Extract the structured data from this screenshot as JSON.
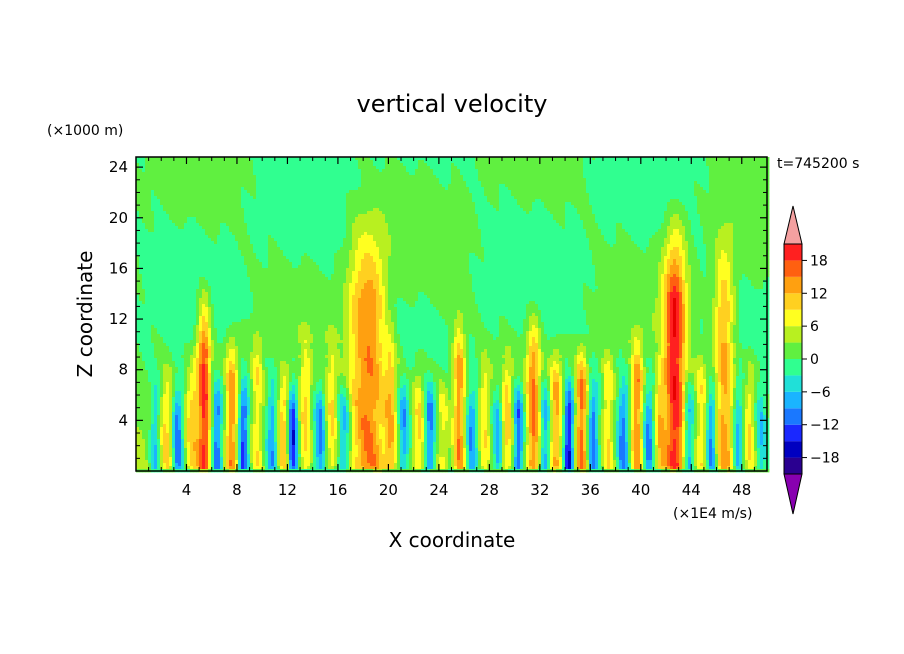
{
  "chart_data": {
    "type": "heatmap",
    "title": "vertical velocity",
    "xlabel": "X coordinate",
    "ylabel": "Z coordinate",
    "y_unit_label": "(×1000 m)",
    "colorbar_unit_label": "(×1E4 m/s)",
    "time_label": "t=745200 s",
    "xlim": [
      0,
      50
    ],
    "ylim": [
      0,
      24.8
    ],
    "x_ticks": [
      4,
      8,
      12,
      16,
      20,
      24,
      28,
      32,
      36,
      40,
      44,
      48
    ],
    "y_ticks": [
      4,
      8,
      12,
      16,
      20,
      24
    ],
    "colorbar": {
      "levels": [
        -21,
        -18,
        -15,
        -12,
        -9,
        -6,
        -3,
        0,
        3,
        6,
        9,
        12,
        15,
        18,
        21
      ],
      "colors": [
        "#5a00a0",
        "#2a0090",
        "#0000c0",
        "#1a28ff",
        "#1a78ff",
        "#1ab4ff",
        "#20e0d8",
        "#30ff90",
        "#60f040",
        "#b8f020",
        "#ffff20",
        "#ffd020",
        "#ffa010",
        "#ff6010",
        "#ff2020",
        "#e80000"
      ],
      "under_color": "#8800b0",
      "over_color": "#f4a0a0",
      "tick_labels": [
        "18",
        "12",
        "6",
        "0",
        "−6",
        "−12",
        "−18"
      ]
    },
    "background_value": 0,
    "plumes": [
      {
        "x": 0.4,
        "width": 0.8,
        "amp": 4,
        "top": 7
      },
      {
        "x": 1.5,
        "width": 0.35,
        "amp": -7,
        "top": 8
      },
      {
        "x": 2.4,
        "width": 0.5,
        "amp": 9,
        "top": 9
      },
      {
        "x": 3.3,
        "width": 0.4,
        "amp": -11,
        "top": 8
      },
      {
        "x": 4.4,
        "width": 0.5,
        "amp": 9,
        "top": 10
      },
      {
        "x": 5.4,
        "width": 0.55,
        "amp": 18,
        "top": 16
      },
      {
        "x": 6.4,
        "width": 0.4,
        "amp": -12,
        "top": 8
      },
      {
        "x": 7.6,
        "width": 0.5,
        "amp": 14,
        "top": 12
      },
      {
        "x": 8.5,
        "width": 0.4,
        "amp": -13,
        "top": 8
      },
      {
        "x": 9.6,
        "width": 0.5,
        "amp": 8,
        "top": 13
      },
      {
        "x": 10.8,
        "width": 0.4,
        "amp": -8,
        "top": 8
      },
      {
        "x": 11.7,
        "width": 0.5,
        "amp": 12,
        "top": 9
      },
      {
        "x": 12.4,
        "width": 0.4,
        "amp": -15,
        "top": 8
      },
      {
        "x": 13.4,
        "width": 0.5,
        "amp": 10,
        "top": 12
      },
      {
        "x": 14.6,
        "width": 0.4,
        "amp": -9,
        "top": 8
      },
      {
        "x": 15.5,
        "width": 0.5,
        "amp": 9,
        "top": 12
      },
      {
        "x": 16.5,
        "width": 0.5,
        "amp": -8,
        "top": 8
      },
      {
        "x": 17.6,
        "width": 1.0,
        "amp": 8,
        "top": 23
      },
      {
        "x": 18.8,
        "width": 1.1,
        "amp": 12,
        "top": 22
      },
      {
        "x": 20.2,
        "width": 0.5,
        "amp": 10,
        "top": 13
      },
      {
        "x": 21.2,
        "width": 0.4,
        "amp": -8,
        "top": 8
      },
      {
        "x": 22.4,
        "width": 0.5,
        "amp": 9,
        "top": 10
      },
      {
        "x": 23.3,
        "width": 0.4,
        "amp": -10,
        "top": 8
      },
      {
        "x": 24.3,
        "width": 0.5,
        "amp": 7,
        "top": 9
      },
      {
        "x": 25.6,
        "width": 0.5,
        "amp": 14,
        "top": 14
      },
      {
        "x": 26.6,
        "width": 0.4,
        "amp": -9,
        "top": 8
      },
      {
        "x": 27.6,
        "width": 0.5,
        "amp": 8,
        "top": 11
      },
      {
        "x": 28.7,
        "width": 0.4,
        "amp": -8,
        "top": 8
      },
      {
        "x": 29.4,
        "width": 0.5,
        "amp": 10,
        "top": 11
      },
      {
        "x": 30.3,
        "width": 0.4,
        "amp": -12,
        "top": 8
      },
      {
        "x": 31.5,
        "width": 0.55,
        "amp": 15,
        "top": 14
      },
      {
        "x": 32.4,
        "width": 0.4,
        "amp": -9,
        "top": 8
      },
      {
        "x": 33.3,
        "width": 0.5,
        "amp": 12,
        "top": 11
      },
      {
        "x": 34.3,
        "width": 0.4,
        "amp": -16,
        "top": 8
      },
      {
        "x": 35.3,
        "width": 0.5,
        "amp": 16,
        "top": 11
      },
      {
        "x": 36.2,
        "width": 0.4,
        "amp": -11,
        "top": 8
      },
      {
        "x": 37.4,
        "width": 0.5,
        "amp": 9,
        "top": 11
      },
      {
        "x": 38.6,
        "width": 0.4,
        "amp": -10,
        "top": 8
      },
      {
        "x": 39.7,
        "width": 0.5,
        "amp": 15,
        "top": 12
      },
      {
        "x": 40.6,
        "width": 0.4,
        "amp": -9,
        "top": 8
      },
      {
        "x": 41.5,
        "width": 0.4,
        "amp": 9,
        "top": 10
      },
      {
        "x": 42.7,
        "width": 0.9,
        "amp": 20,
        "top": 22
      },
      {
        "x": 43.8,
        "width": 0.4,
        "amp": -10,
        "top": 8
      },
      {
        "x": 44.8,
        "width": 0.5,
        "amp": 8,
        "top": 11
      },
      {
        "x": 45.6,
        "width": 0.4,
        "amp": -12,
        "top": 8
      },
      {
        "x": 46.6,
        "width": 0.8,
        "amp": 13,
        "top": 21
      },
      {
        "x": 47.7,
        "width": 0.4,
        "amp": -9,
        "top": 8
      },
      {
        "x": 48.6,
        "width": 0.5,
        "amp": 8,
        "top": 10
      },
      {
        "x": 49.5,
        "width": 0.4,
        "amp": -6,
        "top": 8
      }
    ]
  }
}
